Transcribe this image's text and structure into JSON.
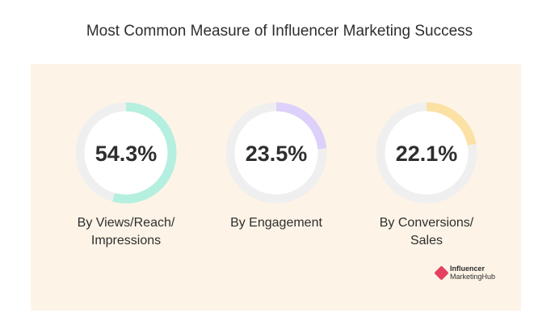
{
  "title": "Most Common Measure of Influencer Marketing Success",
  "brand": {
    "line1": "Influencer",
    "line2": "MarketingHub"
  },
  "chart_data": {
    "type": "pie",
    "title": "Most Common Measure of Influencer Marketing Success",
    "items": [
      {
        "label_lines": [
          "By Views/Reach/",
          "Impressions"
        ],
        "value": 54.3,
        "display": "54.3%",
        "color": "#b5efdf"
      },
      {
        "label_lines": [
          "By Engagement"
        ],
        "value": 23.5,
        "display": "23.5%",
        "color": "#ddd0fa"
      },
      {
        "label_lines": [
          "By Conversions/",
          "Sales"
        ],
        "value": 22.1,
        "display": "22.1%",
        "color": "#fbe1a4"
      }
    ],
    "track_color": "#f0efef"
  }
}
